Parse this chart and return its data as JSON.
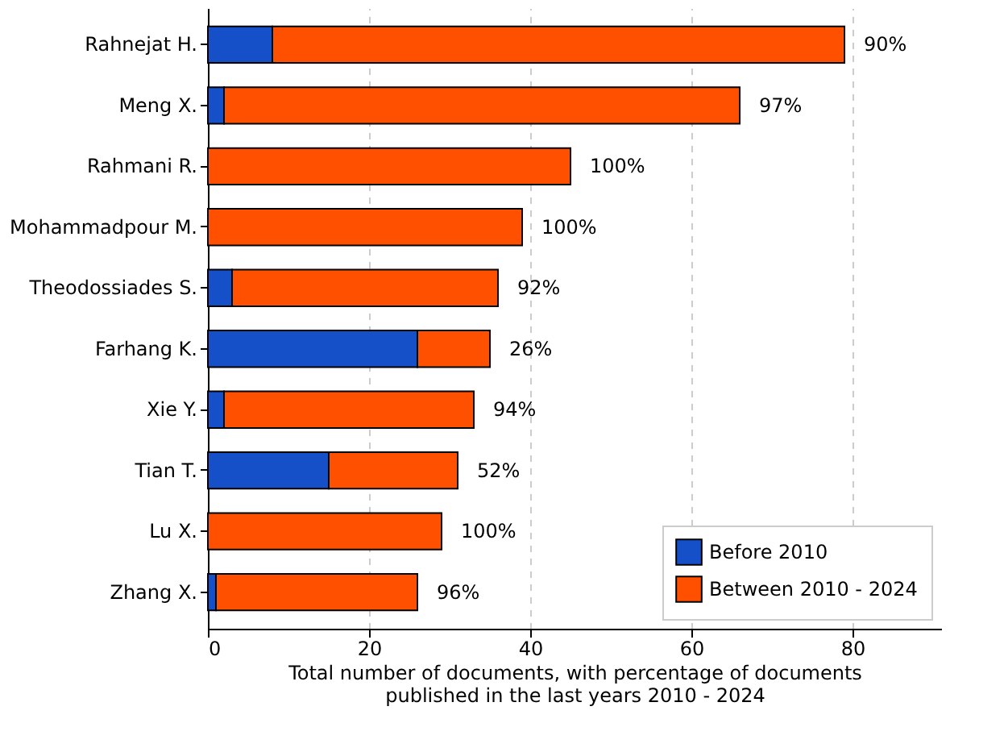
{
  "chart_data": {
    "type": "bar",
    "orientation": "horizontal",
    "stacked": true,
    "categories": [
      "Rahnejat H.",
      "Meng X.",
      "Rahmani R.",
      "Mohammadpour M.",
      "Theodossiades S.",
      "Farhang K.",
      "Xie Y.",
      "Tian T.",
      "Lu X.",
      "Zhang X."
    ],
    "series": [
      {
        "name": "Before 2010",
        "color": "#1550c8",
        "values": [
          8,
          2,
          0,
          0,
          3,
          26,
          2,
          15,
          0,
          1
        ]
      },
      {
        "name": "Between 2010 - 2024",
        "color": "#ff5000",
        "values": [
          71,
          64,
          45,
          39,
          33,
          9,
          31,
          16,
          29,
          25
        ]
      }
    ],
    "annotations": [
      {
        "text": "90%",
        "x": 79,
        "y": "Rahnejat H."
      },
      {
        "text": "97%",
        "x": 66,
        "y": "Meng X."
      },
      {
        "text": "100%",
        "x": 45,
        "y": "Rahmani R."
      },
      {
        "text": "100%",
        "x": 39,
        "y": "Mohammadpour M."
      },
      {
        "text": "92%",
        "x": 36,
        "y": "Theodossiades S."
      },
      {
        "text": "26%",
        "x": 35,
        "y": "Farhang K."
      },
      {
        "text": "94%",
        "x": 33,
        "y": "Xie Y."
      },
      {
        "text": "52%",
        "x": 31,
        "y": "Tian T."
      },
      {
        "text": "100%",
        "x": 29,
        "y": "Lu X."
      },
      {
        "text": "96%",
        "x": 26,
        "y": "Zhang X."
      }
    ],
    "xlabel": "Total number of documents, with percentage of documents\npublished in the last years 2010 - 2024",
    "xlim": [
      0,
      91
    ],
    "xticks": [
      0,
      20,
      40,
      60,
      80
    ],
    "grid": "x",
    "legend": "bottom right"
  }
}
